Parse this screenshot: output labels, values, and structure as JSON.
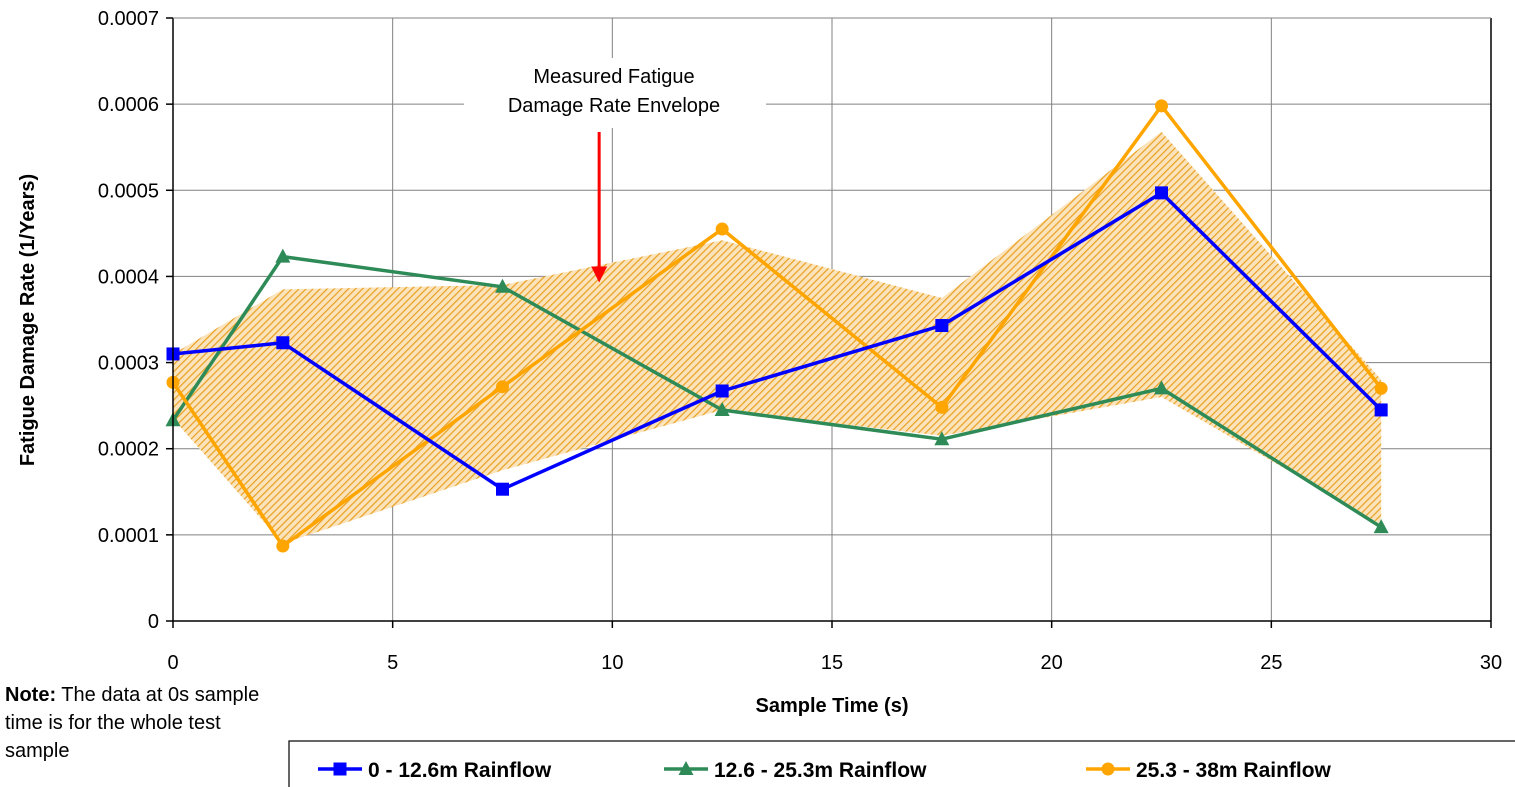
{
  "chart_data": {
    "type": "line",
    "xlabel": "Sample Time (s)",
    "ylabel": "Fatigue Damage Rate (1/Years)",
    "xlim": [
      0,
      30
    ],
    "ylim": [
      0,
      0.0007
    ],
    "x_ticks": [
      0,
      5,
      10,
      15,
      20,
      25,
      30
    ],
    "y_ticks": [
      0,
      0.0001,
      0.0002,
      0.0003,
      0.0004,
      0.0005,
      0.0006,
      0.0007
    ],
    "x_tick_labels": [
      "0",
      "5",
      "10",
      "15",
      "20",
      "25",
      "30"
    ],
    "y_tick_labels": [
      "0",
      "0.0001",
      "0.0002",
      "0.0003",
      "0.0004",
      "0.0005",
      "0.0006",
      "0.0007"
    ],
    "grid": true,
    "legend_position": "bottom",
    "x": [
      0,
      2.5,
      7.5,
      12.5,
      17.5,
      22.5,
      27.5
    ],
    "series": [
      {
        "name": "0 - 12.6m Rainflow",
        "color": "#0000FF",
        "marker": "square",
        "values": [
          0.00031,
          0.000323,
          0.000153,
          0.000267,
          0.000343,
          0.000497,
          0.000245
        ]
      },
      {
        "name": "12.6 - 25.3m Rainflow",
        "color": "#2E8B57",
        "marker": "triangle",
        "values": [
          0.000233,
          0.000423,
          0.000388,
          0.000245,
          0.000211,
          0.00027,
          0.000109
        ]
      },
      {
        "name": "25.3 - 38m Rainflow",
        "color": "#FFA500",
        "marker": "circle",
        "values": [
          0.000277,
          8.7e-05,
          0.000272,
          0.000455,
          0.000248,
          0.000598,
          0.00027
        ]
      }
    ],
    "envelope": {
      "color": "#E8A020",
      "upper": [
        {
          "x": 0,
          "y": 0.00031
        },
        {
          "x": 2.5,
          "y": 0.000385
        },
        {
          "x": 7.5,
          "y": 0.00039
        },
        {
          "x": 12.5,
          "y": 0.000442
        },
        {
          "x": 17.5,
          "y": 0.000375
        },
        {
          "x": 22.5,
          "y": 0.000568
        },
        {
          "x": 27.5,
          "y": 0.00028
        }
      ],
      "lower": [
        {
          "x": 27.5,
          "y": 0.000112
        },
        {
          "x": 22.5,
          "y": 0.00026
        },
        {
          "x": 17.5,
          "y": 0.000215
        },
        {
          "x": 12.5,
          "y": 0.000245
        },
        {
          "x": 7.5,
          "y": 0.000175
        },
        {
          "x": 2.5,
          "y": 9e-05
        },
        {
          "x": 0,
          "y": 0.000235
        }
      ]
    },
    "annotation": {
      "lines": [
        "Measured Fatigue",
        "Damage Rate Envelope"
      ],
      "arrow_color": "#FF0000",
      "arrow_target": {
        "x": 9.7,
        "y": 0.000393
      }
    }
  },
  "note": {
    "bold": "Note:",
    "text": " The data at 0s sample time is for the whole test sample"
  }
}
